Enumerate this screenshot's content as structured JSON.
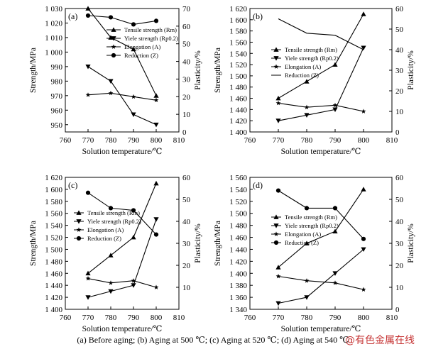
{
  "caption": "(a) Before aging; (b) Aging at 500 ℃; (c) Aging at 520 ℃; (d) Aging at 540 ℃",
  "watermark": "@有色金属在线",
  "colors": {
    "line": "#000000",
    "background": "#ffffff",
    "watermark": "#c02020"
  },
  "chart_data": [
    {
      "type": "line",
      "panel": "(a)",
      "xlabel": "Solution temperature/℃",
      "ylabel": "Strength/MPa",
      "y2label": "Plasticity/%",
      "xlim": [
        760,
        810
      ],
      "xticks": [
        "760",
        "770",
        "780",
        "790",
        "800",
        "810"
      ],
      "ylim": [
        945,
        1030
      ],
      "yticks": [
        "950",
        "960",
        "970",
        "980",
        "990",
        "1 000",
        "1 010",
        "1 020",
        "1 030"
      ],
      "y2lim": [
        0,
        70
      ],
      "y2ticks": [
        "0",
        "10",
        "20",
        "30",
        "40",
        "50",
        "60",
        "70"
      ],
      "legend": "center-right",
      "x": [
        770,
        780,
        790,
        800
      ],
      "series": [
        {
          "name": "Tensile strength (Rm)",
          "axis": "left",
          "marker": "triangle-up",
          "values": [
            1030,
            1010,
            1002,
            970
          ]
        },
        {
          "name": "Yiele strength (Rp0.2)",
          "axis": "left",
          "marker": "triangle-down",
          "values": [
            990,
            980,
            957,
            950
          ]
        },
        {
          "name": "Elongation (A)",
          "axis": "right",
          "marker": "star",
          "values": [
            21,
            22,
            20,
            18
          ]
        },
        {
          "name": "Reduction (Z)",
          "axis": "right",
          "marker": "circle",
          "values": [
            66,
            65,
            61,
            63
          ]
        }
      ]
    },
    {
      "type": "line",
      "panel": "(b)",
      "xlabel": "Solution temperature/℃",
      "ylabel": "Strength/MPa",
      "y2label": "Plasticity/%",
      "xlim": [
        760,
        810
      ],
      "xticks": [
        "760",
        "770",
        "780",
        "790",
        "800",
        "810"
      ],
      "ylim": [
        1400,
        1620
      ],
      "yticks": [
        "1 400",
        "1 420",
        "1 440",
        "1 460",
        "1 480",
        "1 500",
        "1 520",
        "1 540",
        "1 560",
        "1 580",
        "1 600",
        "1 620"
      ],
      "y2lim": [
        0,
        60
      ],
      "y2ticks": [
        "0",
        "10",
        "20",
        "30",
        "40",
        "50",
        "60"
      ],
      "legend": "center-left",
      "x": [
        770,
        780,
        790,
        800
      ],
      "series": [
        {
          "name": "Tensile strength (Rm)",
          "axis": "left",
          "marker": "triangle-up",
          "values": [
            1460,
            1490,
            1520,
            1610
          ]
        },
        {
          "name": "Yiele strength (Rp0.2)",
          "axis": "left",
          "marker": "triangle-down",
          "values": [
            1420,
            1430,
            1440,
            1550
          ]
        },
        {
          "name": "Elongation (A)",
          "axis": "right",
          "marker": "star",
          "values": [
            14,
            12,
            13,
            10
          ]
        },
        {
          "name": "Reduction (Z)",
          "axis": "right",
          "marker": "none",
          "values": [
            55,
            48,
            47,
            40
          ]
        }
      ]
    },
    {
      "type": "line",
      "panel": "(c)",
      "xlabel": "Solution temperature/℃",
      "ylabel": "Strength/MPa",
      "y2label": "Plasticity/%",
      "xlim": [
        760,
        810
      ],
      "xticks": [
        "760",
        "770",
        "780",
        "790",
        "800",
        "810"
      ],
      "ylim": [
        1400,
        1620
      ],
      "yticks": [
        "1 400",
        "1 420",
        "1 440",
        "1 460",
        "1 480",
        "1 500",
        "1 520",
        "1 540",
        "1 560",
        "1 580",
        "1 600",
        "1 620"
      ],
      "y2lim": [
        0,
        60
      ],
      "y2ticks": [
        "10",
        "20",
        "30",
        "40",
        "50",
        "60"
      ],
      "legend": "center-left",
      "x": [
        770,
        780,
        790,
        800
      ],
      "series": [
        {
          "name": "Tensile strength (Rm)",
          "axis": "left",
          "marker": "triangle-up",
          "values": [
            1460,
            1490,
            1520,
            1610
          ]
        },
        {
          "name": "Yiele strength (Rp0.2)",
          "axis": "left",
          "marker": "triangle-down",
          "values": [
            1420,
            1430,
            1440,
            1550
          ]
        },
        {
          "name": "Elongation (A)",
          "axis": "right",
          "marker": "star",
          "values": [
            14,
            12,
            13,
            10
          ]
        },
        {
          "name": "Reduction (Z)",
          "axis": "right",
          "marker": "circle",
          "values": [
            53,
            46,
            45,
            34
          ]
        }
      ]
    },
    {
      "type": "line",
      "panel": "(d)",
      "xlabel": "Solution temperature/℃",
      "ylabel": "Strength/MPa",
      "y2label": "Plasticity/%",
      "xlim": [
        760,
        810
      ],
      "xticks": [
        "760",
        "770",
        "780",
        "790",
        "800",
        "810"
      ],
      "ylim": [
        1340,
        1560
      ],
      "yticks": [
        "1 340",
        "1 360",
        "1 380",
        "1 400",
        "1 420",
        "1 440",
        "1 460",
        "1 480",
        "1 500",
        "1 520",
        "1 540",
        "1 560"
      ],
      "y2lim": [
        0,
        60
      ],
      "y2ticks": [
        "0",
        "10",
        "20",
        "30",
        "40",
        "50",
        "60"
      ],
      "legend": "center-left",
      "x": [
        770,
        780,
        790,
        800
      ],
      "series": [
        {
          "name": "Tensile strength (Rm)",
          "axis": "left",
          "marker": "triangle-up",
          "values": [
            1410,
            1450,
            1470,
            1540
          ]
        },
        {
          "name": "Yiele strength (Rp0.2)",
          "axis": "left",
          "marker": "triangle-down",
          "values": [
            1350,
            1360,
            1400,
            1440
          ]
        },
        {
          "name": "Elongation (A)",
          "axis": "right",
          "marker": "star",
          "values": [
            15,
            13,
            12,
            9
          ]
        },
        {
          "name": "Reduction (Z)",
          "axis": "right",
          "marker": "circle",
          "values": [
            54,
            46,
            46,
            32
          ]
        }
      ]
    }
  ]
}
